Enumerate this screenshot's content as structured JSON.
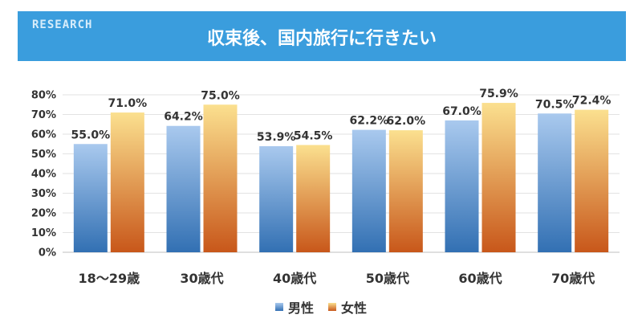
{
  "header": {
    "brand": "RESEARCH",
    "title": "収束後、国内旅行に行きたい"
  },
  "colors": {
    "banner": "#3a9ddd",
    "male_top": "#a9c9ee",
    "male_bottom": "#3270b3",
    "female_top": "#fbe08f",
    "female_bottom": "#c8571a"
  },
  "chart_data": {
    "type": "bar",
    "title": "収束後、国内旅行に行きたい",
    "categories": [
      "18～29歳",
      "30歳代",
      "40歳代",
      "50歳代",
      "60歳代",
      "70歳代"
    ],
    "series": [
      {
        "name": "男性",
        "values": [
          55.0,
          64.2,
          53.9,
          62.2,
          67.0,
          70.5
        ]
      },
      {
        "name": "女性",
        "values": [
          71.0,
          75.0,
          54.5,
          62.0,
          75.9,
          72.4
        ]
      }
    ],
    "ylim": [
      0,
      80
    ],
    "yticks": [
      "0%",
      "10%",
      "20%",
      "30%",
      "40%",
      "50%",
      "60%",
      "70%",
      "80%"
    ],
    "value_labels": [
      [
        "55.0%",
        "64.2%",
        "53.9%",
        "62.2%",
        "67.0%",
        "70.5%"
      ],
      [
        "71.0%",
        "75.0%",
        "54.5%",
        "62.0%",
        "75.9%",
        "72.4%"
      ]
    ],
    "grid": true,
    "legend": "bottom-center"
  }
}
